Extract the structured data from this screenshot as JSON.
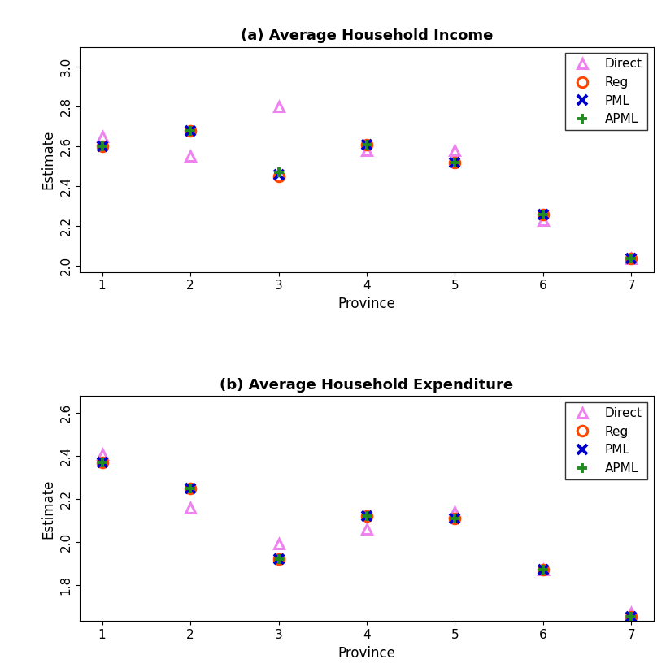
{
  "chart_data": [
    {
      "type": "scatter",
      "title": "(a) Average Household Income",
      "x_label": "Province",
      "y_label": "Estimate",
      "x": [
        1,
        2,
        3,
        4,
        5,
        6,
        7
      ],
      "xlim": [
        0.75,
        7.25
      ],
      "xticks": [
        1,
        2,
        3,
        4,
        5,
        6,
        7
      ],
      "ylim": [
        1.97,
        3.1
      ],
      "yticks": [
        2.0,
        2.2,
        2.4,
        2.6,
        2.8,
        3.0
      ],
      "legend": "upper right",
      "series": [
        {
          "name": "Direct",
          "color": "#ee82ee",
          "marker": "triangle",
          "values": [
            2.65,
            2.55,
            2.8,
            2.58,
            2.58,
            2.23,
            2.04
          ]
        },
        {
          "name": "Reg",
          "color": "#ff4500",
          "marker": "circle",
          "values": [
            2.6,
            2.68,
            2.45,
            2.61,
            2.52,
            2.26,
            2.04
          ]
        },
        {
          "name": "PML",
          "color": "#0000cd",
          "marker": "x",
          "values": [
            2.6,
            2.68,
            2.46,
            2.61,
            2.52,
            2.26,
            2.04
          ]
        },
        {
          "name": "APML",
          "color": "#228b22",
          "marker": "plus",
          "values": [
            2.6,
            2.68,
            2.47,
            2.61,
            2.52,
            2.26,
            2.04
          ]
        }
      ]
    },
    {
      "type": "scatter",
      "title": "(b) Average Household Expenditure",
      "x_label": "Province",
      "y_label": "Estimate",
      "x": [
        1,
        2,
        3,
        4,
        5,
        6,
        7
      ],
      "xlim": [
        0.75,
        7.25
      ],
      "xticks": [
        1,
        2,
        3,
        4,
        5,
        6,
        7
      ],
      "ylim": [
        1.63,
        2.68
      ],
      "yticks": [
        1.8,
        2.0,
        2.2,
        2.4,
        2.6
      ],
      "legend": "upper right",
      "series": [
        {
          "name": "Direct",
          "color": "#ee82ee",
          "marker": "triangle",
          "values": [
            2.41,
            2.16,
            1.99,
            2.06,
            2.14,
            1.87,
            1.67
          ]
        },
        {
          "name": "Reg",
          "color": "#ff4500",
          "marker": "circle",
          "values": [
            2.37,
            2.25,
            1.92,
            2.12,
            2.11,
            1.87,
            1.65
          ]
        },
        {
          "name": "PML",
          "color": "#0000cd",
          "marker": "x",
          "values": [
            2.37,
            2.25,
            1.92,
            2.12,
            2.11,
            1.87,
            1.65
          ]
        },
        {
          "name": "APML",
          "color": "#228b22",
          "marker": "plus",
          "values": [
            2.37,
            2.25,
            1.92,
            2.12,
            2.11,
            1.87,
            1.65
          ]
        }
      ]
    }
  ]
}
